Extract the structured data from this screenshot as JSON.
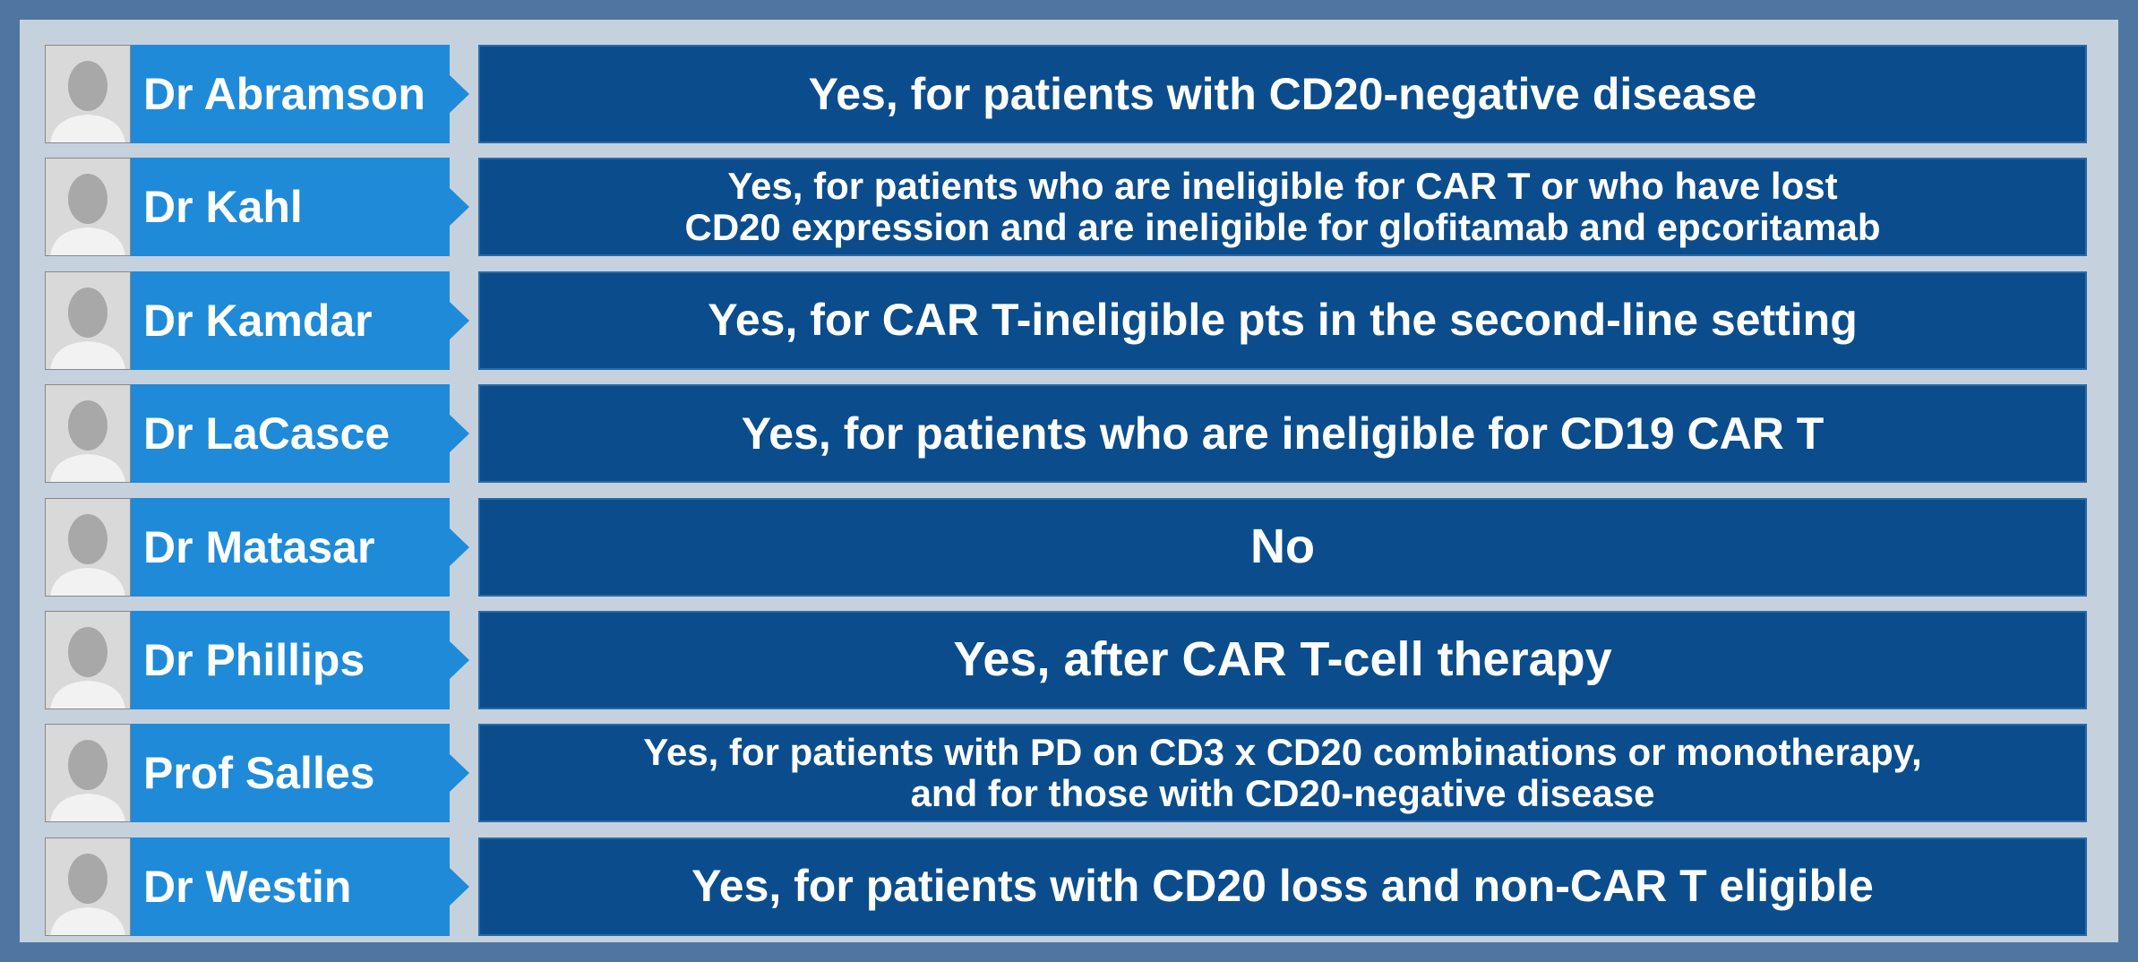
{
  "rows": [
    {
      "name": "Dr Abramson",
      "answer": [
        "Yes, for patients with CD20-negative disease"
      ]
    },
    {
      "name": "Dr Kahl",
      "answer": [
        "Yes, for patients who are ineligible for CAR T or who have lost",
        "CD20 expression and are ineligible for glofitamab and epcoritamab"
      ]
    },
    {
      "name": "Dr Kamdar",
      "answer": [
        "Yes, for CAR T-ineligible pts in the second-line setting"
      ]
    },
    {
      "name": "Dr LaCasce",
      "answer": [
        "Yes, for patients who are ineligible for CD19 CAR T"
      ]
    },
    {
      "name": "Dr Matasar",
      "answer": [
        "No"
      ]
    },
    {
      "name": "Dr Phillips",
      "answer": [
        "Yes, after CAR T-cell therapy"
      ]
    },
    {
      "name": "Prof Salles",
      "answer": [
        "Yes, for patients with PD on CD3 x CD20 combinations or monotherapy,",
        "and for those with CD20-negative disease"
      ]
    },
    {
      "name": "Dr Westin",
      "answer": [
        "Yes, for patients with CD20 loss and non-CAR T eligible"
      ]
    }
  ]
}
